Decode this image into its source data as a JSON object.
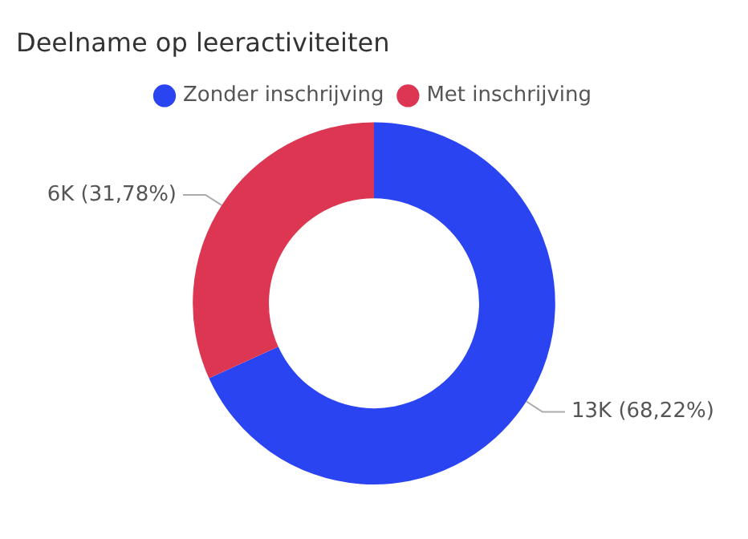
{
  "chart_data": {
    "type": "donut",
    "title": "Deelname op leeractiviteiten",
    "categories": [
      "Zonder inschrijving",
      "Met inschrijving"
    ],
    "values": [
      68.22,
      31.78
    ],
    "colors": [
      "#2b44f2",
      "#dc3652"
    ],
    "value_labels": [
      "13K (68,22%)",
      "6K (31,78%)"
    ],
    "legend": "top"
  }
}
